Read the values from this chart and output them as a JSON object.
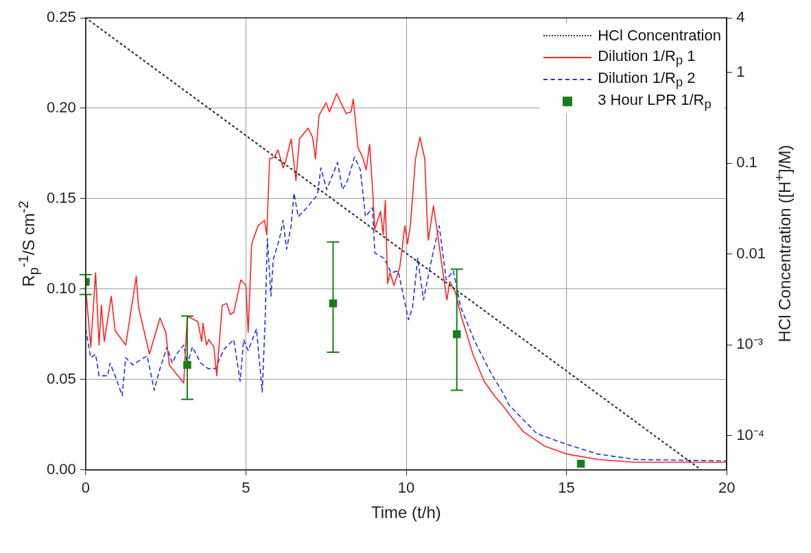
{
  "chart_data": {
    "type": "line",
    "xlabel": "Time (t/h)",
    "ylabel": "R$_{p}$$^{-1}$/S cm$^{-2}$",
    "y2label": "HCl Concentration ([H$^{+}$]/M)",
    "xlim": [
      0,
      20
    ],
    "xticks": [
      0,
      5,
      10,
      15,
      20
    ],
    "ylim": [
      0,
      0.25
    ],
    "yticks": [
      {
        "value": 0,
        "label": "0.00"
      },
      {
        "value": 0.05,
        "label": "0.05"
      },
      {
        "value": 0.1,
        "label": "0.10"
      },
      {
        "value": 0.15,
        "label": "0.15"
      },
      {
        "value": 0.2,
        "label": "0.20"
      },
      {
        "value": 0.25,
        "label": "0.25"
      }
    ],
    "y2lim": [
      4.2e-05,
      4
    ],
    "y2ticks": [
      4,
      1,
      0.1,
      0.01,
      {
        "value": 0.001,
        "label": "10⁻³"
      },
      {
        "value": 0.0001,
        "label": "10⁻⁴"
      }
    ],
    "log": "y2",
    "grid": true,
    "legend": "top right",
    "series": [
      {
        "name": "HCl Concentration",
        "type": "line",
        "axis": "y2",
        "color": "#333333",
        "line_style": "dotted",
        "marker": "none",
        "x": [
          0,
          19.2
        ],
        "values": [
          4,
          4.2e-05
        ]
      },
      {
        "name": "Dilution 1/R$_{p}$ 1",
        "type": "line",
        "color": "#ff2020",
        "line_style": "solid",
        "marker": "none",
        "x": [
          0.02,
          0.16,
          0.31,
          0.42,
          0.49,
          0.58,
          0.8,
          0.92,
          1.25,
          1.58,
          1.65,
          1.99,
          2.32,
          2.5,
          2.61,
          3.06,
          3.17,
          3.5,
          3.62,
          3.66,
          3.77,
          3.84,
          4.0,
          4.09,
          4.26,
          4.4,
          4.51,
          4.62,
          4.84,
          5.0,
          5.07,
          5.18,
          5.38,
          5.58,
          5.65,
          5.74,
          5.89,
          6.0,
          6.16,
          6.23,
          6.41,
          6.56,
          6.67,
          6.94,
          7.08,
          7.17,
          7.28,
          7.5,
          7.61,
          7.83,
          8.13,
          8.28,
          8.35,
          8.5,
          8.64,
          8.75,
          8.86,
          8.97,
          9.02,
          9.2,
          9.28,
          9.35,
          9.42,
          9.5,
          9.62,
          9.8,
          9.96,
          10.04,
          10.13,
          10.29,
          10.43,
          10.58,
          10.65,
          10.69,
          10.85,
          10.96,
          11.1,
          11.27,
          11.36,
          11.54,
          11.7,
          12.08,
          12.43,
          12.75,
          13.04,
          13.2,
          13.66,
          14.33,
          15.02,
          15.98,
          17.1,
          20.0
        ],
        "values": [
          0.097,
          0.068,
          0.109,
          0.069,
          0.091,
          0.071,
          0.096,
          0.077,
          0.069,
          0.107,
          0.09,
          0.064,
          0.084,
          0.076,
          0.058,
          0.048,
          0.085,
          0.082,
          0.071,
          0.081,
          0.069,
          0.072,
          0.068,
          0.052,
          0.091,
          0.092,
          0.086,
          0.087,
          0.105,
          0.102,
          0.076,
          0.125,
          0.135,
          0.138,
          0.13,
          0.172,
          0.173,
          0.177,
          0.167,
          0.17,
          0.183,
          0.16,
          0.183,
          0.189,
          0.184,
          0.172,
          0.196,
          0.203,
          0.198,
          0.208,
          0.197,
          0.198,
          0.205,
          0.178,
          0.173,
          0.166,
          0.18,
          0.15,
          0.133,
          0.143,
          0.13,
          0.149,
          0.103,
          0.109,
          0.102,
          0.112,
          0.135,
          0.125,
          0.135,
          0.172,
          0.184,
          0.172,
          0.14,
          0.127,
          0.146,
          0.133,
          0.115,
          0.094,
          0.104,
          0.098,
          0.086,
          0.064,
          0.049,
          0.041,
          0.035,
          0.031,
          0.021,
          0.013,
          0.0087,
          0.0057,
          0.0042,
          0.0042
        ]
      },
      {
        "name": "Dilution 1/R$_{p}$ 2",
        "type": "line",
        "color": "#2030e0",
        "line_style": "dashed",
        "marker": "none",
        "x": [
          0,
          0.16,
          0.31,
          0.42,
          0.69,
          0.76,
          0.92,
          1.14,
          1.25,
          1.47,
          1.72,
          1.92,
          2.14,
          2.32,
          2.54,
          2.7,
          2.84,
          3.06,
          3.17,
          3.33,
          3.59,
          3.82,
          4.04,
          4.33,
          4.62,
          4.82,
          4.93,
          5.07,
          5.33,
          5.51,
          5.6,
          5.67,
          5.78,
          5.85,
          6.05,
          6.16,
          6.27,
          6.41,
          6.5,
          6.63,
          6.85,
          7.23,
          7.34,
          7.52,
          7.86,
          8.01,
          8.17,
          8.39,
          8.57,
          8.73,
          8.95,
          9.02,
          9.31,
          9.53,
          9.75,
          10.07,
          10.2,
          10.36,
          10.51,
          10.54,
          10.8,
          11.03,
          11.25,
          11.47,
          11.7,
          12.14,
          12.66,
          13.04,
          13.2,
          14.08,
          15.02,
          15.98,
          17.17,
          20.0
        ],
        "values": [
          0.078,
          0.062,
          0.064,
          0.052,
          0.052,
          0.059,
          0.052,
          0.041,
          0.062,
          0.058,
          0.061,
          0.063,
          0.044,
          0.056,
          0.068,
          0.059,
          0.064,
          0.069,
          0.058,
          0.068,
          0.059,
          0.056,
          0.056,
          0.067,
          0.072,
          0.049,
          0.072,
          0.066,
          0.078,
          0.043,
          0.083,
          0.128,
          0.096,
          0.116,
          0.128,
          0.138,
          0.122,
          0.135,
          0.153,
          0.14,
          0.144,
          0.152,
          0.167,
          0.155,
          0.17,
          0.155,
          0.16,
          0.173,
          0.166,
          0.14,
          0.145,
          0.12,
          0.117,
          0.109,
          0.11,
          0.083,
          0.09,
          0.117,
          0.098,
          0.094,
          0.117,
          0.135,
          0.105,
          0.11,
          0.09,
          0.071,
          0.053,
          0.042,
          0.036,
          0.02,
          0.014,
          0.0087,
          0.0057,
          0.0049
        ]
      },
      {
        "name": "3 Hour LPR 1/R$_{p}$",
        "type": "scatter",
        "color": "#168016",
        "marker": "square",
        "x": [
          0,
          3.17,
          7.72,
          11.58,
          15.45
        ],
        "values": [
          0.104,
          0.058,
          0.092,
          0.075,
          0.0034
        ],
        "errors": [
          [
            0.097,
            0.108
          ],
          [
            0.039,
            0.085
          ],
          [
            0.065,
            0.126
          ],
          [
            0.044,
            0.111
          ],
          null
        ]
      }
    ]
  }
}
